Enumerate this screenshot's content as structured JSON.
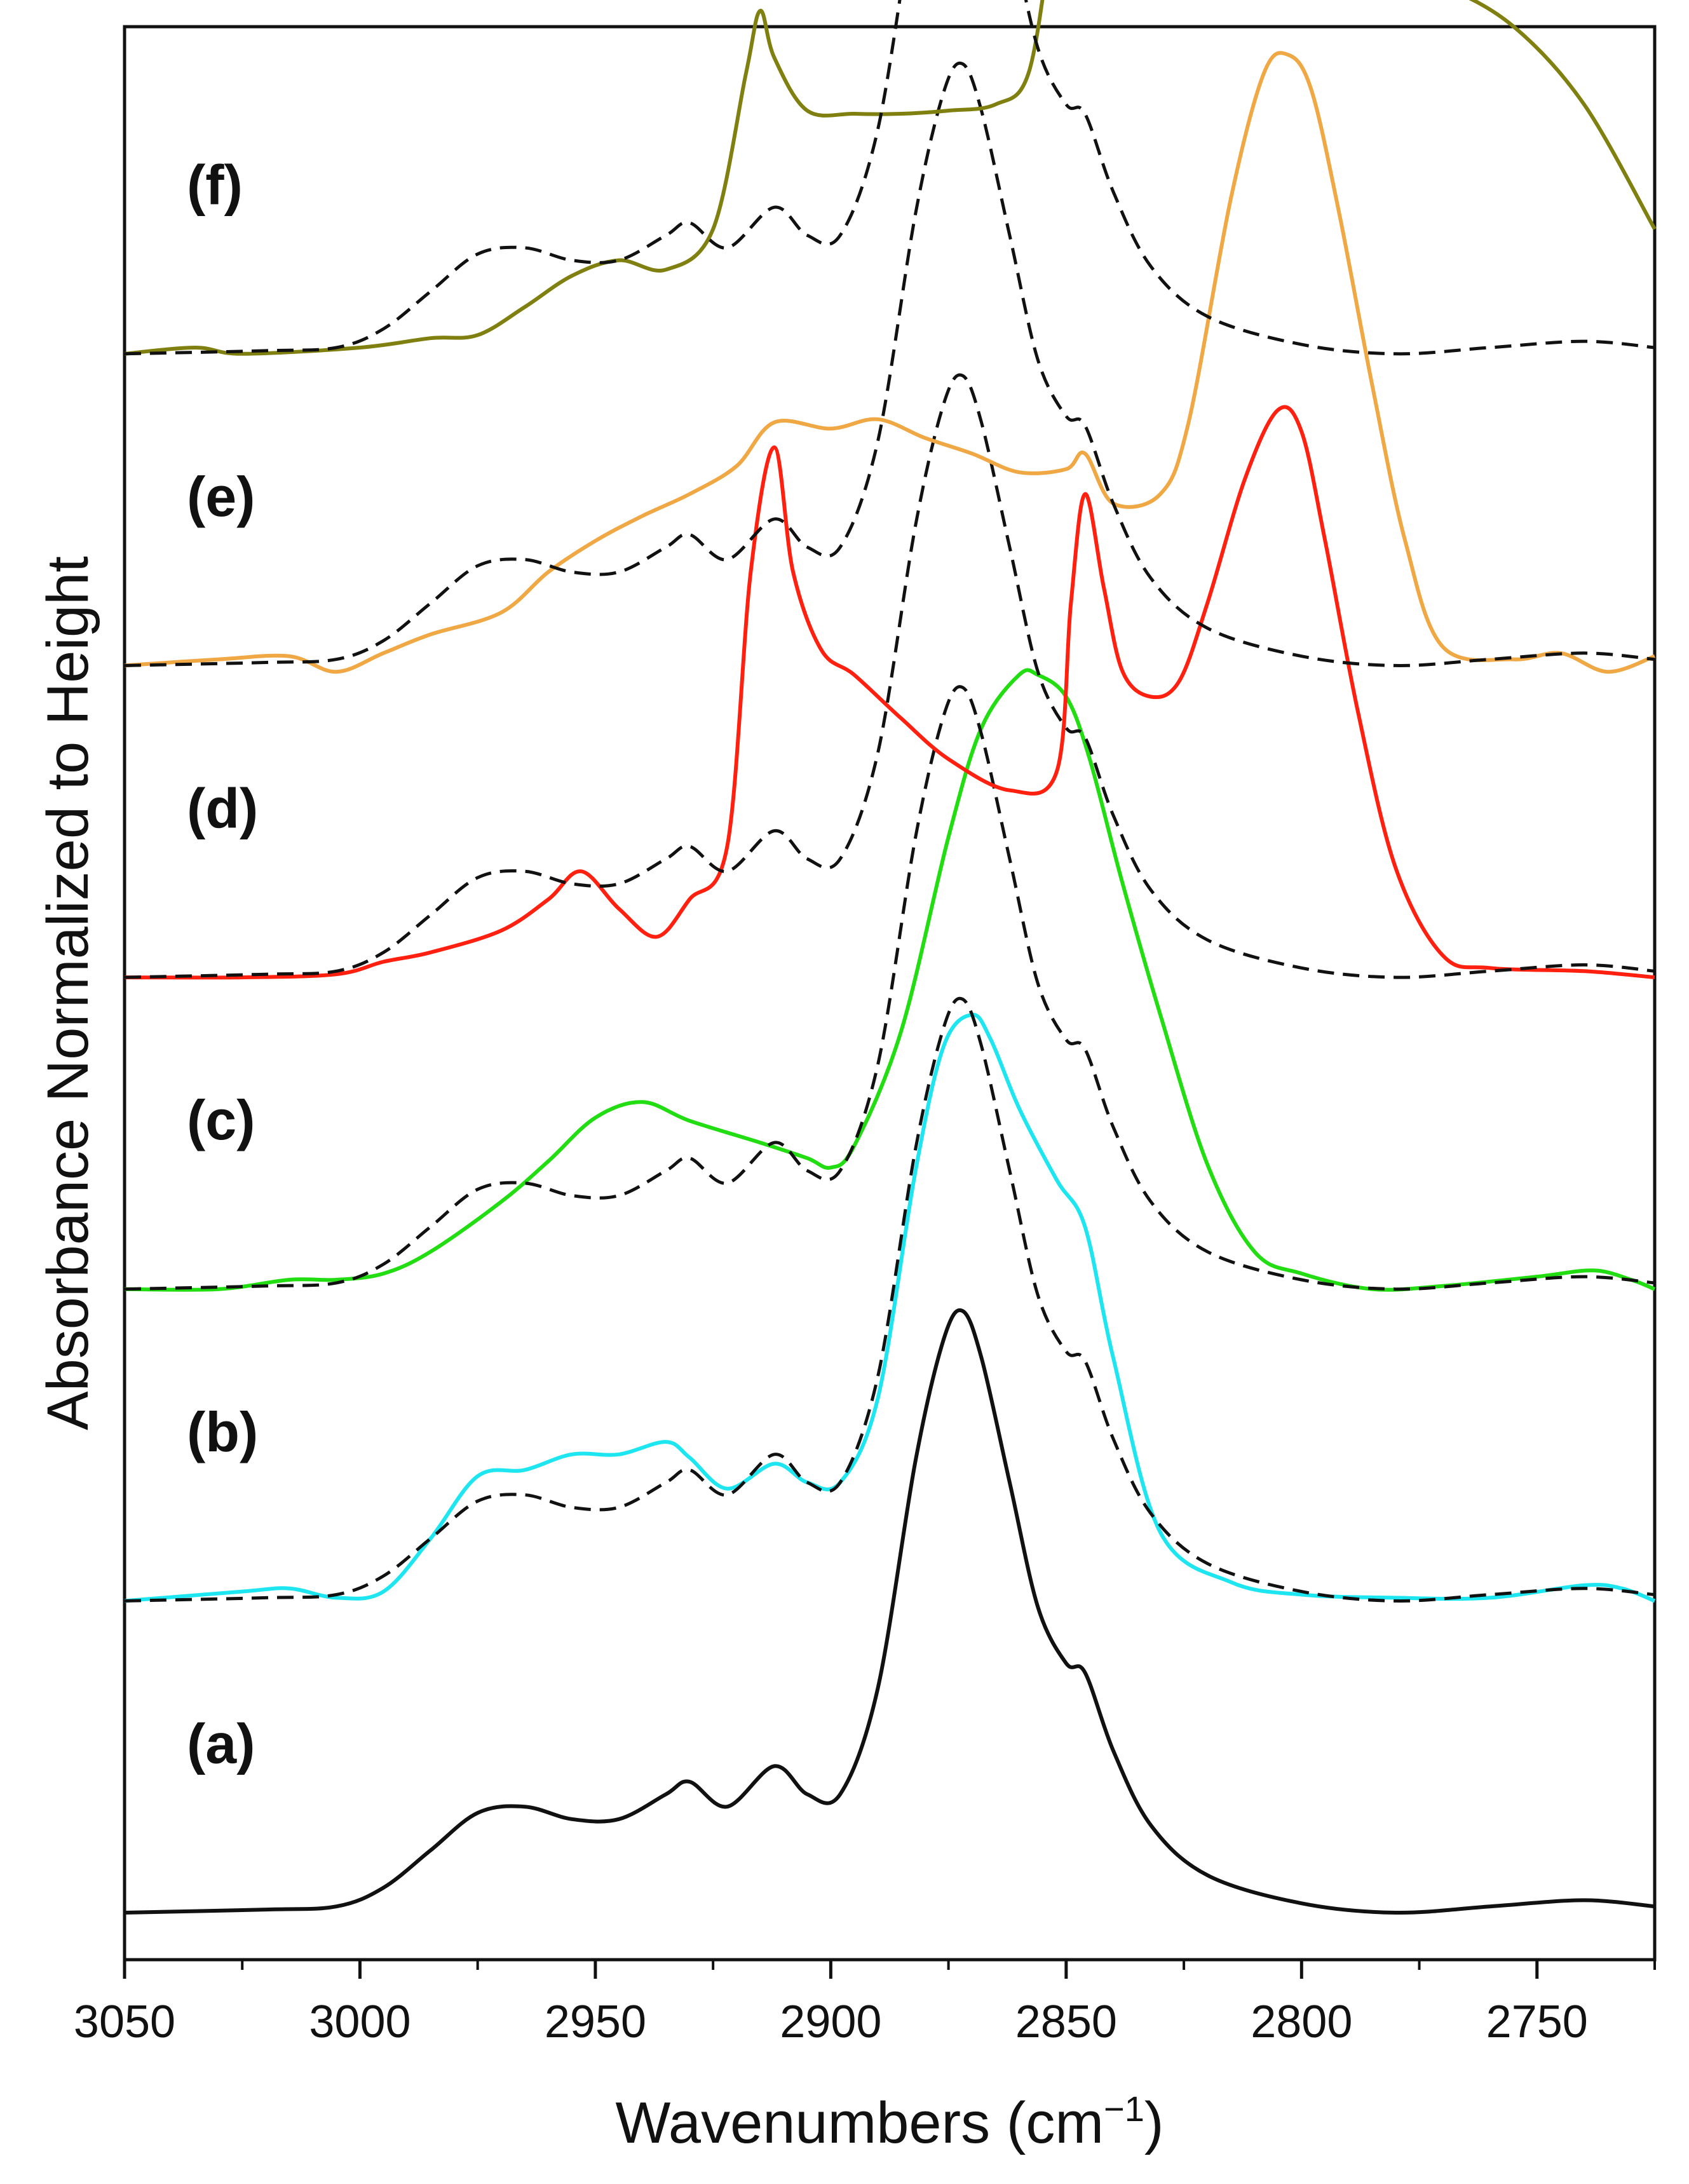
{
  "chart_data": {
    "type": "line",
    "title": "",
    "xlabel": "Wavenumbers (cm",
    "xlabel_sup": "−1",
    "xlabel_close": ")",
    "ylabel": "Absorbance Normalized to Height",
    "xlim": [
      3050,
      2725
    ],
    "x_reversed": true,
    "ylim": [
      0,
      6.2
    ],
    "grid": false,
    "xticks": [
      3050,
      3000,
      2950,
      2900,
      2850,
      2800,
      2750
    ],
    "xtick_labels": [
      "3050",
      "3000",
      "2950",
      "2900",
      "2850",
      "2800",
      "2750"
    ],
    "reference": {
      "name": "(a) reference",
      "color": "#111111",
      "x": [
        3050,
        3020,
        3005,
        2995,
        2985,
        2975,
        2965,
        2955,
        2945,
        2935,
        2930,
        2922,
        2912,
        2905,
        2898,
        2890,
        2882,
        2876,
        2872,
        2868,
        2862,
        2856,
        2850,
        2846,
        2840,
        2832,
        2820,
        2800,
        2780,
        2760,
        2740,
        2725
      ],
      "values": [
        0.0,
        0.01,
        0.02,
        0.08,
        0.2,
        0.32,
        0.34,
        0.3,
        0.3,
        0.38,
        0.42,
        0.34,
        0.47,
        0.38,
        0.38,
        0.72,
        1.45,
        1.84,
        1.93,
        1.78,
        1.38,
        0.98,
        0.8,
        0.77,
        0.52,
        0.28,
        0.12,
        0.03,
        0.0,
        0.02,
        0.04,
        0.02
      ]
    },
    "series": [
      {
        "name": "(a)",
        "label": "(a)",
        "color": "#111111",
        "baseline": 0.0,
        "reference_overlay": false,
        "x": [
          3050,
          3020,
          3005,
          2995,
          2985,
          2975,
          2965,
          2955,
          2945,
          2935,
          2930,
          2922,
          2912,
          2905,
          2898,
          2890,
          2882,
          2876,
          2872,
          2868,
          2862,
          2856,
          2850,
          2846,
          2840,
          2832,
          2820,
          2800,
          2780,
          2760,
          2740,
          2725
        ],
        "values": [
          0.0,
          0.01,
          0.02,
          0.08,
          0.2,
          0.32,
          0.34,
          0.3,
          0.3,
          0.38,
          0.42,
          0.34,
          0.47,
          0.38,
          0.38,
          0.72,
          1.45,
          1.84,
          1.93,
          1.78,
          1.38,
          0.98,
          0.8,
          0.77,
          0.52,
          0.28,
          0.12,
          0.03,
          0.0,
          0.02,
          0.04,
          0.02
        ]
      },
      {
        "name": "(b)",
        "label": "(b)",
        "color": "#1ee6f0",
        "baseline": 1.0,
        "reference_overlay": true,
        "x": [
          3050,
          3025,
          3015,
          3005,
          2995,
          2985,
          2975,
          2965,
          2955,
          2945,
          2935,
          2930,
          2922,
          2912,
          2905,
          2898,
          2890,
          2882,
          2876,
          2870,
          2866,
          2860,
          2852,
          2846,
          2840,
          2830,
          2815,
          2800,
          2780,
          2760,
          2740,
          2732,
          2725
        ],
        "values": [
          0.0,
          0.03,
          0.04,
          0.01,
          0.03,
          0.2,
          0.4,
          0.42,
          0.47,
          0.47,
          0.51,
          0.46,
          0.36,
          0.44,
          0.38,
          0.38,
          0.65,
          1.38,
          1.78,
          1.88,
          1.8,
          1.58,
          1.35,
          1.2,
          0.78,
          0.22,
          0.06,
          0.02,
          0.01,
          0.01,
          0.05,
          0.04,
          0.0
        ]
      },
      {
        "name": "(c)",
        "label": "(c)",
        "color": "#22dd11",
        "baseline": 2.0,
        "reference_overlay": true,
        "x": [
          3050,
          3030,
          3015,
          3005,
          2995,
          2985,
          2970,
          2960,
          2950,
          2940,
          2930,
          2915,
          2905,
          2900,
          2895,
          2885,
          2875,
          2868,
          2860,
          2856,
          2850,
          2845,
          2838,
          2830,
          2820,
          2810,
          2800,
          2785,
          2770,
          2750,
          2738,
          2730,
          2725
        ],
        "values": [
          0.0,
          0.0,
          0.03,
          0.03,
          0.05,
          0.12,
          0.28,
          0.41,
          0.55,
          0.6,
          0.54,
          0.47,
          0.42,
          0.39,
          0.46,
          0.83,
          1.45,
          1.8,
          1.97,
          1.97,
          1.9,
          1.7,
          1.3,
          0.88,
          0.4,
          0.12,
          0.05,
          0.0,
          0.01,
          0.04,
          0.06,
          0.03,
          0.0
        ]
      },
      {
        "name": "(d)",
        "label": "(d)",
        "color": "#ff2010",
        "baseline": 3.0,
        "reference_overlay": true,
        "x": [
          3050,
          3025,
          3005,
          2995,
          2985,
          2970,
          2960,
          2953,
          2945,
          2937,
          2930,
          2922,
          2917,
          2912,
          2908,
          2902,
          2895,
          2885,
          2875,
          2862,
          2852,
          2849,
          2846,
          2842,
          2838,
          2832,
          2826,
          2820,
          2812,
          2805,
          2800,
          2795,
          2788,
          2780,
          2770,
          2760,
          2740,
          2725
        ],
        "values": [
          0.0,
          0.0,
          0.01,
          0.05,
          0.08,
          0.15,
          0.25,
          0.34,
          0.22,
          0.13,
          0.25,
          0.42,
          1.3,
          1.7,
          1.3,
          1.05,
          0.97,
          0.83,
          0.7,
          0.6,
          0.66,
          1.2,
          1.55,
          1.25,
          0.98,
          0.9,
          0.95,
          1.2,
          1.6,
          1.82,
          1.75,
          1.4,
          0.85,
          0.35,
          0.07,
          0.03,
          0.02,
          0.0
        ]
      },
      {
        "name": "(e)",
        "label": "(e)",
        "color": "#f0a844",
        "baseline": 4.0,
        "reference_overlay": true,
        "x": [
          3050,
          3030,
          3015,
          3005,
          2995,
          2985,
          2970,
          2960,
          2950,
          2940,
          2930,
          2920,
          2912,
          2900,
          2890,
          2880,
          2870,
          2860,
          2850,
          2846,
          2840,
          2830,
          2824,
          2815,
          2808,
          2803,
          2798,
          2792,
          2785,
          2778,
          2770,
          2755,
          2745,
          2735,
          2725
        ],
        "values": [
          0.0,
          0.02,
          0.03,
          -0.02,
          0.04,
          0.1,
          0.17,
          0.3,
          0.4,
          0.48,
          0.55,
          0.64,
          0.78,
          0.76,
          0.79,
          0.73,
          0.68,
          0.62,
          0.63,
          0.68,
          0.52,
          0.55,
          0.78,
          1.5,
          1.9,
          1.96,
          1.85,
          1.45,
          0.9,
          0.4,
          0.06,
          0.02,
          0.04,
          -0.02,
          0.03
        ]
      },
      {
        "name": "(f)",
        "label": "(f)",
        "color": "#808010",
        "baseline": 5.0,
        "reference_overlay": true,
        "x": [
          3050,
          3035,
          3025,
          3000,
          2985,
          2975,
          2965,
          2955,
          2945,
          2935,
          2925,
          2918,
          2915,
          2912,
          2905,
          2895,
          2885,
          2875,
          2865,
          2858,
          2853,
          2850,
          2847,
          2843,
          2835,
          2820,
          2800,
          2785,
          2770,
          2755,
          2740,
          2725
        ],
        "values": [
          0.0,
          0.02,
          0.0,
          0.02,
          0.05,
          0.06,
          0.15,
          0.25,
          0.3,
          0.27,
          0.4,
          0.9,
          1.1,
          0.95,
          0.78,
          0.77,
          0.77,
          0.78,
          0.8,
          0.9,
          1.35,
          1.62,
          1.65,
          1.45,
          1.35,
          1.3,
          1.3,
          1.25,
          1.18,
          1.05,
          0.8,
          0.4
        ]
      }
    ]
  }
}
